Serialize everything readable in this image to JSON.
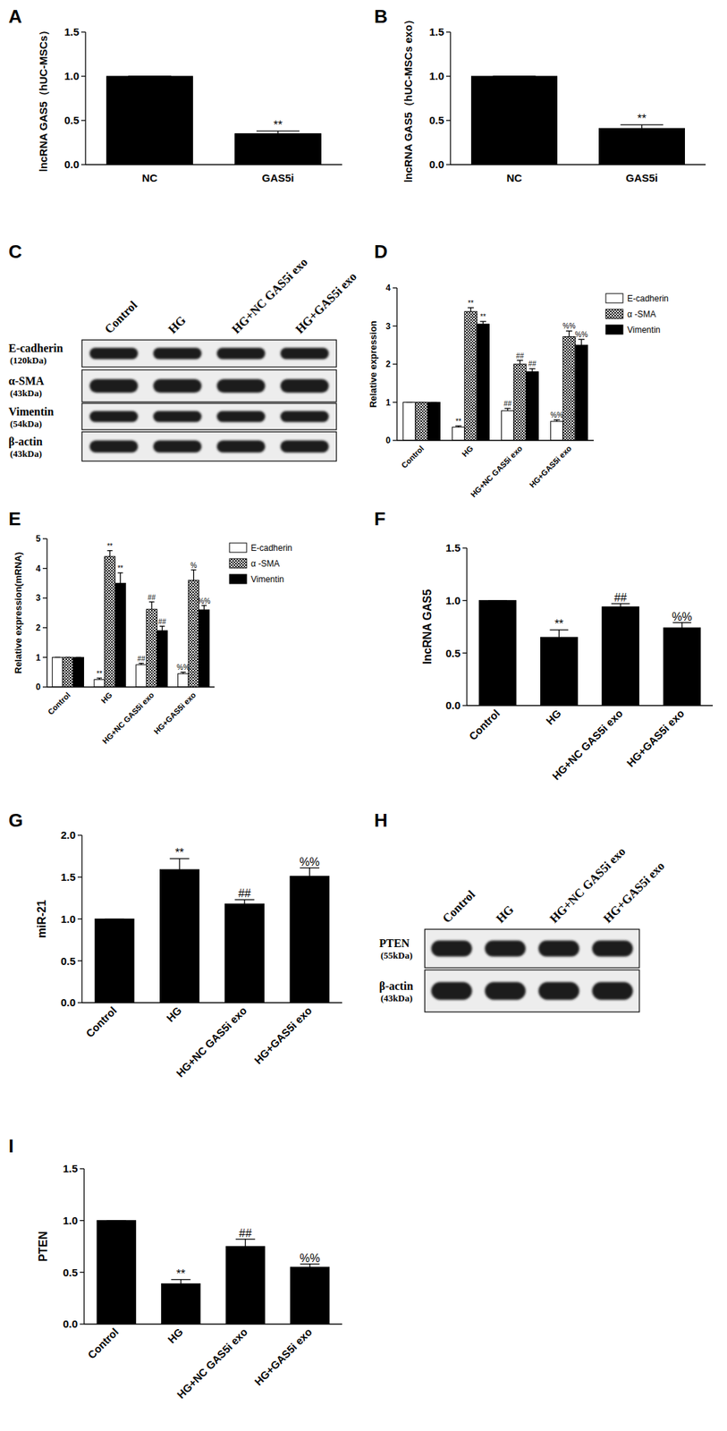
{
  "chart_data": [
    {
      "panel": "A",
      "type": "bar",
      "y_label": "lncRNA GAS5（hUC-MSCs）",
      "categories": [
        "NC",
        "GAS5i"
      ],
      "values": [
        1.0,
        0.35
      ],
      "errors": [
        0,
        0.03
      ],
      "annotations": [
        null,
        "**"
      ],
      "color": "#000000",
      "ylim": [
        0,
        1.5
      ],
      "yticks": [
        {
          "value": 0,
          "label": "0.0"
        },
        {
          "value": 0.5,
          "label": "0.5"
        },
        {
          "value": 1,
          "label": "1.0"
        },
        {
          "value": 1.5,
          "label": "1.5"
        }
      ]
    },
    {
      "panel": "B",
      "type": "bar",
      "y_label": "lncRNA GAS5（hUC-MSCs exo）",
      "categories": [
        "NC",
        "GAS5i"
      ],
      "values": [
        1.0,
        0.41
      ],
      "errors": [
        0,
        0.04
      ],
      "annotations": [
        null,
        "**"
      ],
      "color": "#000000",
      "ylim": [
        0,
        1.5
      ],
      "yticks": [
        {
          "value": 0,
          "label": "0.0"
        },
        {
          "value": 0.5,
          "label": "0.5"
        },
        {
          "value": 1,
          "label": "1.0"
        },
        {
          "value": 1.5,
          "label": "1.5"
        }
      ]
    },
    {
      "panel": "D",
      "type": "bar",
      "y_label": "Relative expression",
      "categories": [
        "Control",
        "HG",
        "HG+NC GAS5i exo",
        "HG+GAS5i exo"
      ],
      "series": [
        {
          "name": "E-cadherin",
          "color": "#ffffff",
          "values": [
            1,
            0.35,
            0.78,
            0.5
          ],
          "errors": [
            0,
            0.03,
            0.06,
            0.04
          ],
          "annotations": [
            null,
            "**",
            "##",
            "%%"
          ]
        },
        {
          "name": "α -SMA",
          "color": "#000000",
          "marker": "checkered",
          "values": [
            1,
            3.38,
            2.0,
            2.72
          ],
          "errors": [
            0,
            0.1,
            0.1,
            0.15
          ],
          "annotations": [
            null,
            "**",
            "##",
            "%%"
          ]
        },
        {
          "name": "Vimentin",
          "color": "#000000",
          "values": [
            1,
            3.05,
            1.8,
            2.5
          ],
          "errors": [
            0,
            0.07,
            0.08,
            0.15
          ],
          "annotations": [
            null,
            "**",
            "##",
            "%%"
          ]
        }
      ],
      "legend": "upper right",
      "ylim": [
        0,
        4
      ],
      "yticks": [
        0,
        1,
        2,
        3,
        4
      ]
    },
    {
      "panel": "E",
      "type": "bar",
      "y_label": "Relative expression(mRNA)",
      "categories": [
        "Control",
        "HG",
        "HG+NC GAS5i exo",
        "HG+GAS5i exo"
      ],
      "series": [
        {
          "name": "E-cadherin",
          "color": "#ffffff",
          "values": [
            1,
            0.25,
            0.75,
            0.45
          ],
          "errors": [
            0,
            0.05,
            0.05,
            0.05
          ],
          "annotations": [
            null,
            "**",
            "##",
            "%%"
          ]
        },
        {
          "name": "α -SMA",
          "color": "#000000",
          "marker": "checkered",
          "values": [
            1,
            4.4,
            2.62,
            3.6
          ],
          "errors": [
            0,
            0.2,
            0.25,
            0.35
          ],
          "annotations": [
            null,
            "**",
            "##",
            "%"
          ]
        },
        {
          "name": "Vimentin",
          "color": "#000000",
          "values": [
            1,
            3.5,
            1.9,
            2.6
          ],
          "errors": [
            0,
            0.35,
            0.15,
            0.15
          ],
          "annotations": [
            null,
            "**",
            "##",
            "%%"
          ]
        }
      ],
      "legend": "upper right",
      "ylim": [
        0,
        5
      ],
      "yticks": [
        0,
        1,
        2,
        3,
        4,
        5
      ]
    },
    {
      "panel": "F",
      "type": "bar",
      "y_label": "lncRNA GAS5",
      "categories": [
        "Control",
        "HG",
        "HG+NC GAS5i exo",
        "HG+GAS5i exo"
      ],
      "values": [
        1.0,
        0.65,
        0.94,
        0.74
      ],
      "errors": [
        0,
        0.07,
        0.03,
        0.05
      ],
      "annotations": [
        null,
        "**",
        "##",
        "%%"
      ],
      "color": "#000000",
      "ylim": [
        0,
        1.5
      ],
      "yticks": [
        {
          "value": 0,
          "label": "0.0"
        },
        {
          "value": 0.5,
          "label": "0.5"
        },
        {
          "value": 1,
          "label": "1.0"
        },
        {
          "value": 1.5,
          "label": "1.5"
        }
      ]
    },
    {
      "panel": "G",
      "type": "bar",
      "y_label": "miR-21",
      "categories": [
        "Control",
        "HG",
        "HG+NC GAS5i exo",
        "HG+GAS5i exo"
      ],
      "values": [
        1.0,
        1.59,
        1.18,
        1.51
      ],
      "errors": [
        0,
        0.13,
        0.05,
        0.1
      ],
      "annotations": [
        null,
        "**",
        "##",
        "%%"
      ],
      "color": "#000000",
      "ylim": [
        0,
        2
      ],
      "yticks": [
        {
          "value": 0,
          "label": "0.0"
        },
        {
          "value": 0.5,
          "label": "0.5"
        },
        {
          "value": 1,
          "label": "1.0"
        },
        {
          "value": 1.5,
          "label": "1.5"
        },
        {
          "value": 2,
          "label": "2.0"
        }
      ]
    },
    {
      "panel": "I",
      "type": "bar",
      "y_label": "PTEN",
      "categories": [
        "Control",
        "HG",
        "HG+NC GAS5i exo",
        "HG+GAS5i exo"
      ],
      "values": [
        1.0,
        0.39,
        0.75,
        0.55
      ],
      "errors": [
        0,
        0.04,
        0.07,
        0.03
      ],
      "annotations": [
        null,
        "**",
        "##",
        "%%"
      ],
      "color": "#000000",
      "ylim": [
        0,
        1.5
      ],
      "yticks": [
        {
          "value": 0,
          "label": "0.0"
        },
        {
          "value": 0.5,
          "label": "0.5"
        },
        {
          "value": 1,
          "label": "1.0"
        },
        {
          "value": 1.5,
          "label": "1.5"
        }
      ]
    }
  ],
  "blots": [
    {
      "panel": "C",
      "lanes": [
        "Control",
        "HG",
        "HG+NC GAS5i exo",
        "HG+GAS5i exo"
      ],
      "rows": [
        {
          "name": "E-cadherin",
          "size": "(120kDa)"
        },
        {
          "name": "α-SMA",
          "size": "(43kDa)"
        },
        {
          "name": "Vimentin",
          "size": "(54kDa)"
        },
        {
          "name": "β-actin",
          "size": "(43kDa)"
        }
      ]
    },
    {
      "panel": "H",
      "lanes": [
        "Control",
        "HG",
        "HG+NC GAS5i exo",
        "HG+GAS5i exo"
      ],
      "rows": [
        {
          "name": "PTEN",
          "size": "(55kDa)"
        },
        {
          "name": "β-actin",
          "size": "(43kDa)"
        }
      ]
    }
  ]
}
